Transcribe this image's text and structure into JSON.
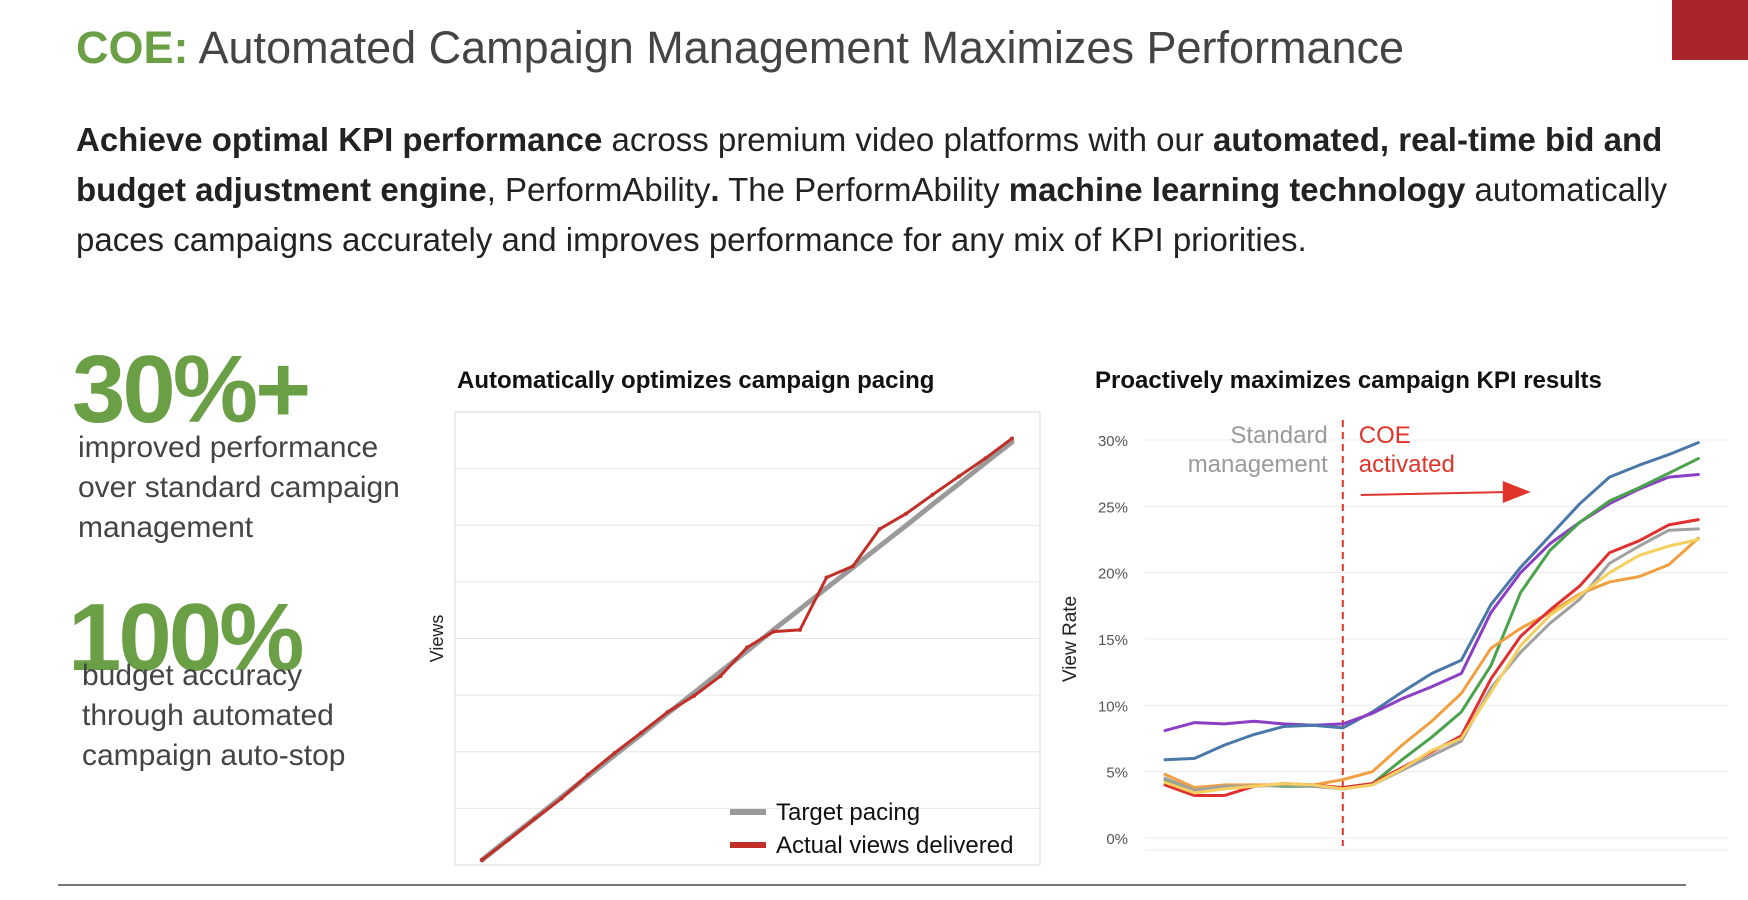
{
  "header": {
    "title_prefix": "COE:",
    "title_rest": " Automated Campaign Management Maximizes Performance"
  },
  "intro": {
    "parts": [
      {
        "text": "Achieve optimal KPI performance",
        "bold": true
      },
      {
        "text": " across premium video platforms with our ",
        "bold": false
      },
      {
        "text": "automated, real-time bid and budget adjustment engine",
        "bold": true
      },
      {
        "text": ", PerformAbility",
        "bold": false
      },
      {
        "text": ".",
        "bold": true
      },
      {
        "text": " The PerformAbility ",
        "bold": false
      },
      {
        "text": "machine learning technology",
        "bold": true
      },
      {
        "text": " automatically paces campaigns accurately and improves performance for any mix of KPI priorities.",
        "bold": false
      }
    ]
  },
  "stats": [
    {
      "value": "30%+",
      "lines": [
        "improved performance",
        "over standard campaign",
        "management"
      ]
    },
    {
      "value": "100%",
      "lines": [
        "budget accuracy",
        "through automated",
        "campaign auto-stop"
      ]
    }
  ],
  "colors": {
    "brand_green": "#6a9f45",
    "brand_red": "#a8262b",
    "annotation_red": "#e0342b",
    "annotation_gray": "#9a9a9a"
  },
  "chart_data": [
    {
      "type": "line",
      "title": "Automatically optimizes campaign pacing",
      "xlabel": "",
      "ylabel": "Views",
      "y_tick_labels": false,
      "grid": true,
      "legend_position": "bottom-right",
      "x": [
        0,
        5,
        10,
        15,
        20,
        25,
        30,
        35,
        40,
        45,
        50,
        55,
        60,
        65,
        70,
        75,
        80,
        85,
        90,
        95,
        100
      ],
      "series": [
        {
          "name": "Target pacing",
          "color": "#9a9a9a",
          "values": [
            0,
            4.8,
            9.5,
            14.3,
            19.0,
            23.8,
            28.5,
            33.3,
            38.0,
            42.8,
            47.5,
            52.3,
            57.0,
            61.8,
            66.5,
            71.3,
            76.0,
            80.8,
            85.5,
            90.3,
            95.0
          ]
        },
        {
          "name": "Actual views delivered",
          "color": "#c03028",
          "values": [
            0,
            4.6,
            9.4,
            14.0,
            19.4,
            24.3,
            28.9,
            33.6,
            37.3,
            41.8,
            48.3,
            51.9,
            52.3,
            64.2,
            66.8,
            75.2,
            78.7,
            83.0,
            87.2,
            91.3,
            95.8
          ]
        }
      ]
    },
    {
      "type": "line",
      "title": "Proactively maximizes campaign KPI results",
      "xlabel": "",
      "ylabel": "View Rate",
      "ylim": [
        0,
        30
      ],
      "y_ticks": [
        "0%",
        "5%",
        "10%",
        "15%",
        "20%",
        "25%",
        "30%"
      ],
      "grid": true,
      "annotations": {
        "before_label_1": "Standard",
        "before_label_2": "management",
        "after_label_1": "COE",
        "after_label_2": "activated"
      },
      "x": [
        0,
        1,
        2,
        3,
        4,
        5,
        6,
        7,
        8,
        9,
        10,
        11,
        12,
        13,
        14,
        15,
        16,
        17,
        18,
        19
      ],
      "series": [
        {
          "color": "#8b3fc4",
          "values": [
            8.1,
            8.7,
            8.6,
            8.8,
            8.6,
            8.5,
            8.6,
            null,
            null,
            null,
            null,
            null,
            null,
            null,
            null,
            null,
            null,
            null,
            null,
            null
          ]
        },
        {
          "color": "#4a78a8",
          "values": [
            5.9,
            6.0,
            7.0,
            7.8,
            8.4,
            8.5,
            8.3,
            9.5,
            11.0,
            12.4,
            13.4,
            17.6,
            20.4,
            22.8,
            25.2,
            27.2,
            28.1,
            28.9,
            29.8,
            null
          ]
        },
        {
          "color": "#8b3fc4",
          "values": [
            null,
            null,
            null,
            null,
            null,
            null,
            8.6,
            9.4,
            10.5,
            11.4,
            12.4,
            17.0,
            20.0,
            22.2,
            23.8,
            25.2,
            26.3,
            27.2,
            27.4,
            null
          ]
        },
        {
          "color": "#4aa34b",
          "values": [
            4.4,
            3.5,
            3.8,
            4.0,
            3.9,
            3.9,
            3.8,
            4.1,
            5.9,
            7.6,
            9.5,
            13.0,
            18.5,
            21.7,
            23.8,
            25.4,
            26.4,
            27.5,
            28.6,
            null
          ]
        },
        {
          "color": "#f0a040",
          "values": [
            4.8,
            3.8,
            4.0,
            4.0,
            4.0,
            4.0,
            4.4,
            5.0,
            7.0,
            8.8,
            10.9,
            14.3,
            15.8,
            17.0,
            18.4,
            19.3,
            19.7,
            20.6,
            22.6,
            null
          ]
        },
        {
          "color": "#e03030",
          "values": [
            4.0,
            3.2,
            3.2,
            3.9,
            4.1,
            4.0,
            3.8,
            4.1,
            5.3,
            6.5,
            7.7,
            12.0,
            15.2,
            17.2,
            19.0,
            21.5,
            22.4,
            23.6,
            24.0,
            null
          ]
        },
        {
          "color": "#a0a0a0",
          "values": [
            4.5,
            3.6,
            3.9,
            3.9,
            4.0,
            3.9,
            3.7,
            4.0,
            5.1,
            6.2,
            7.3,
            11.3,
            14.0,
            16.2,
            18.0,
            20.7,
            22.0,
            23.2,
            23.3,
            null
          ]
        },
        {
          "color": "#f5cf60",
          "values": [
            4.2,
            3.4,
            3.7,
            3.9,
            4.1,
            4.0,
            3.7,
            4.0,
            5.2,
            6.6,
            7.5,
            11.0,
            14.5,
            16.8,
            18.3,
            20.0,
            21.3,
            22.0,
            22.5,
            null
          ]
        }
      ]
    }
  ]
}
